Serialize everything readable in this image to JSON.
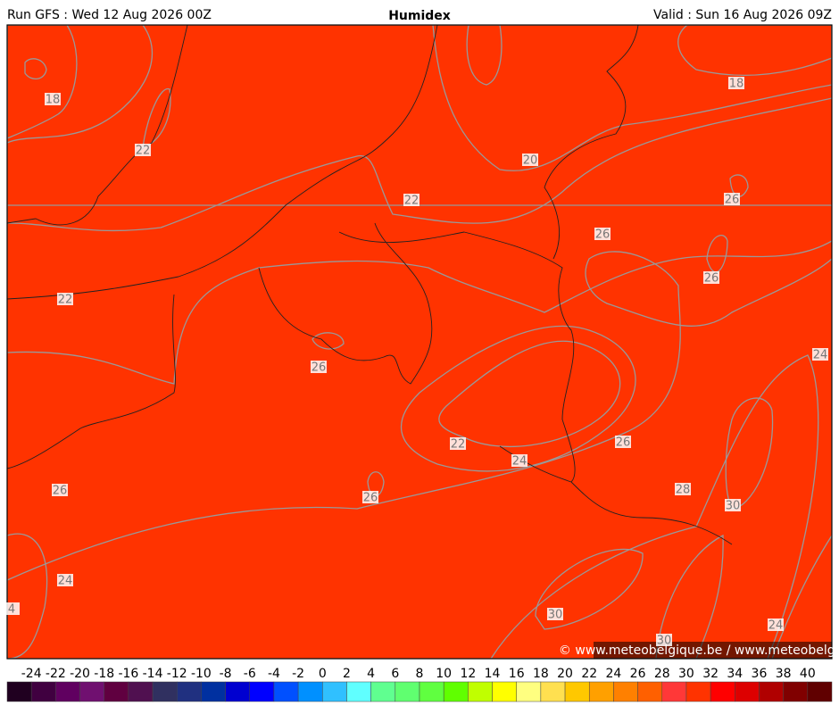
{
  "header": {
    "left": "Run GFS : Wed 12 Aug 2026 00Z",
    "title": "Humidex",
    "right": "Valid : Sun 16 Aug 2026 09Z"
  },
  "contour_labels": [
    18,
    22,
    22,
    18,
    20,
    22,
    26,
    26,
    26,
    26,
    24,
    22,
    26,
    24,
    26,
    26,
    28,
    30,
    24,
    4,
    30,
    24,
    30
  ],
  "colorbar": {
    "ticks": [
      -24,
      -22,
      -20,
      -18,
      -16,
      -14,
      -12,
      -10,
      -8,
      -6,
      -4,
      -2,
      0,
      2,
      4,
      6,
      8,
      10,
      12,
      14,
      16,
      18,
      20,
      22,
      24,
      26,
      28,
      30,
      32,
      34,
      36,
      38,
      40
    ],
    "colors": [
      "#200020",
      "#400040",
      "#600060",
      "#701070",
      "#600040",
      "#501050",
      "#303060",
      "#203080",
      "#0030a0",
      "#0000d0",
      "#0000ff",
      "#0050ff",
      "#0090ff",
      "#30c0ff",
      "#60ffff",
      "#60ff90",
      "#60ff70",
      "#60ff40",
      "#60ff00",
      "#c0ff00",
      "#ffff00",
      "#ffff80",
      "#ffe050",
      "#ffc800",
      "#ffa000",
      "#ff8000",
      "#ff6000",
      "#ff3838",
      "#ff3300",
      "#ff0000",
      "#dd0000",
      "#b00000",
      "#800000",
      "#600000"
    ]
  },
  "credit": "© www.meteobelgique.be / www.meteobelgie.be"
}
